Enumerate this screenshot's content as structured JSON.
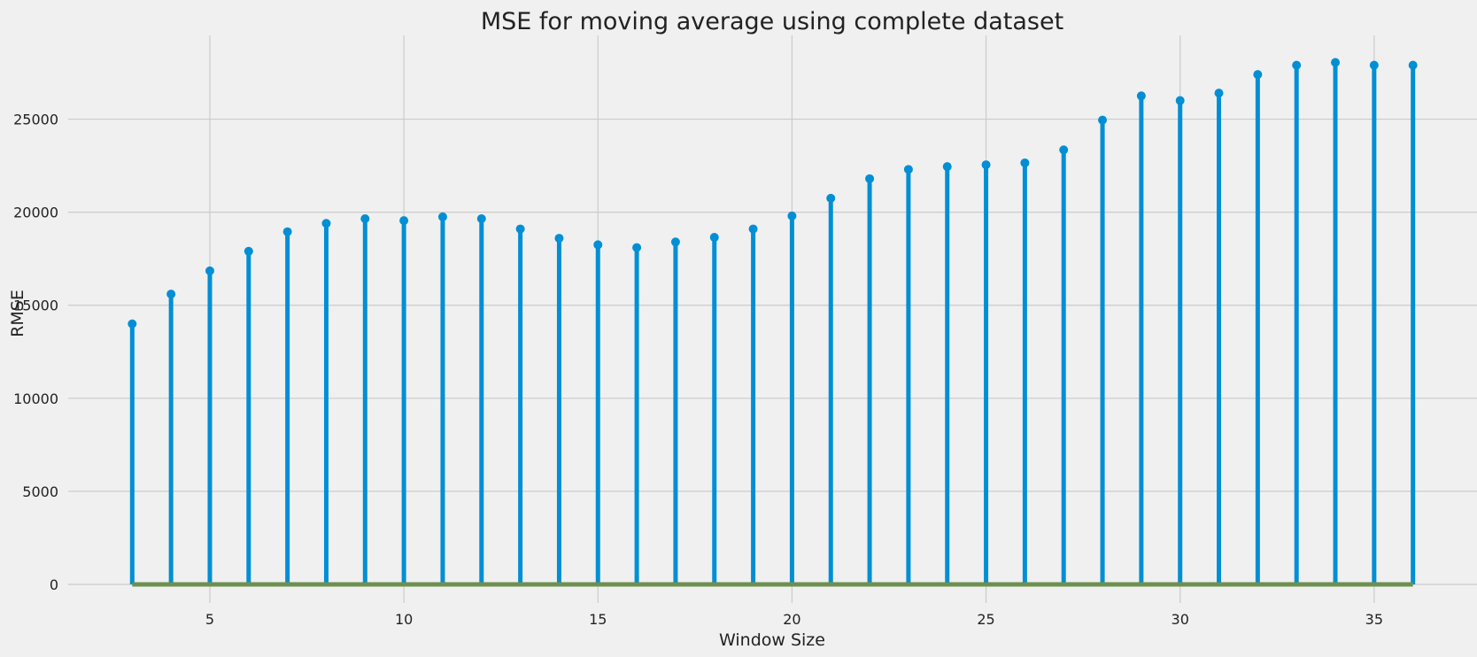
{
  "chart_data": {
    "type": "stem",
    "title": "MSE for moving average using complete dataset",
    "xlabel": "Window Size",
    "ylabel": "RMSE",
    "xlim": [
      1.35,
      37.65
    ],
    "ylim": [
      -1000,
      29500
    ],
    "xticks": [
      5,
      10,
      15,
      20,
      25,
      30,
      35
    ],
    "yticks": [
      0,
      5000,
      10000,
      15000,
      20000,
      25000
    ],
    "grid": true,
    "x": [
      3,
      4,
      5,
      6,
      7,
      8,
      9,
      10,
      11,
      12,
      13,
      14,
      15,
      16,
      17,
      18,
      19,
      20,
      21,
      22,
      23,
      24,
      25,
      26,
      27,
      28,
      29,
      30,
      31,
      32,
      33,
      34,
      35,
      36
    ],
    "values": [
      14000,
      15600,
      16850,
      17900,
      18950,
      19400,
      19650,
      19550,
      19750,
      19650,
      19100,
      18600,
      18250,
      18100,
      18400,
      18650,
      19100,
      19800,
      20750,
      21800,
      22300,
      22450,
      22550,
      22650,
      23350,
      24950,
      26250,
      26000,
      26400,
      27400,
      27900,
      28050,
      27900,
      27900
    ],
    "colors": {
      "stem": "#008fd5",
      "baseline": "#6d904f",
      "grid": "#cbcbcb",
      "background": "#f0f0f0"
    }
  }
}
